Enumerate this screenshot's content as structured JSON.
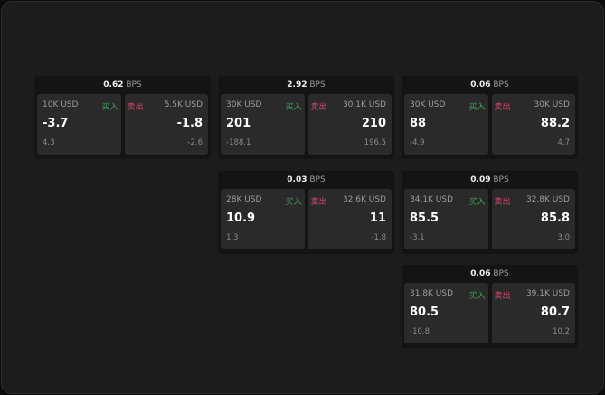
{
  "unit": "BPS",
  "buy_label": "买入",
  "sell_label": "卖出",
  "colors": {
    "buy": "#3fa55a",
    "sell": "#d8466e"
  },
  "panels": [
    {
      "spread": "0.62",
      "bid": {
        "qty": "10K USD",
        "price": "-3.7",
        "change": "4.3"
      },
      "ask": {
        "qty": "5.5K USD",
        "price": "-1.8",
        "change": "-2.6"
      }
    },
    {
      "spread": "2.92",
      "bid": {
        "qty": "30K USD",
        "price": "201",
        "change": "-188.1"
      },
      "ask": {
        "qty": "30.1K USD",
        "price": "210",
        "change": "196.5"
      }
    },
    {
      "spread": "0.06",
      "bid": {
        "qty": "30K USD",
        "price": "88",
        "change": "-4.9"
      },
      "ask": {
        "qty": "30K USD",
        "price": "88.2",
        "change": "4.7"
      }
    },
    {
      "spread": "0.03",
      "bid": {
        "qty": "28K USD",
        "price": "10.9",
        "change": "1.3"
      },
      "ask": {
        "qty": "32.6K USD",
        "price": "11",
        "change": "-1.8"
      }
    },
    {
      "spread": "0.09",
      "bid": {
        "qty": "34.1K USD",
        "price": "85.5",
        "change": "-3.1"
      },
      "ask": {
        "qty": "32.8K USD",
        "price": "85.8",
        "change": "3.0"
      }
    },
    {
      "spread": "0.06",
      "bid": {
        "qty": "31.8K USD",
        "price": "80.5",
        "change": "-10.8"
      },
      "ask": {
        "qty": "39.1K USD",
        "price": "80.7",
        "change": "10.2"
      }
    }
  ]
}
